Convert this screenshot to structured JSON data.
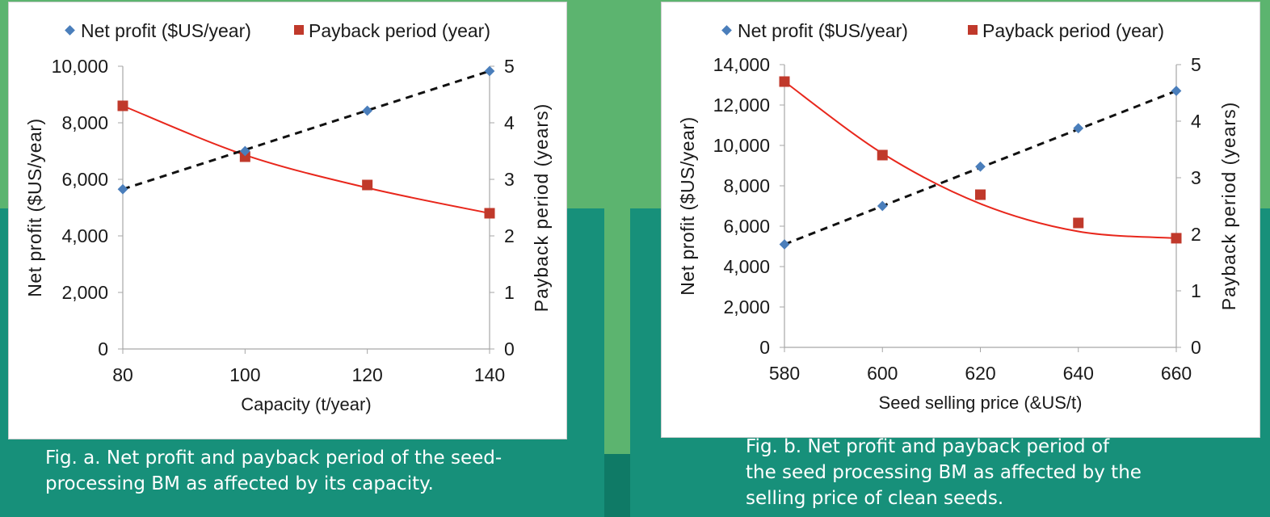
{
  "colors": {
    "net_profit_marker": "#4a7ebb",
    "payback_marker": "#c0392b",
    "payback_line": "#e8271c",
    "net_profit_line": "#111111",
    "bg_light": "#5cb46f",
    "bg_dark": "#17907a"
  },
  "captions": {
    "a": [
      "Fig. a. Net profit and payback period of the seed-",
      "processing BM as affected by its capacity."
    ],
    "b": [
      "Fig. b. Net profit and payback period of",
      "the seed processing BM as affected by the",
      "selling price of clean seeds."
    ]
  },
  "chart_data": [
    {
      "type": "line",
      "legend": [
        "Net profit ($US/year)",
        "Payback period (year)"
      ],
      "legend_position": "top",
      "xlabel": "Capacity (t/year)",
      "ylabel": "Net profit ($US/year)",
      "y2label": "Payback period (years)",
      "x": [
        80,
        100,
        120,
        140
      ],
      "x_ticks": [
        "80",
        "100",
        "120",
        "140"
      ],
      "xlim": [
        80,
        140
      ],
      "ylim": [
        0,
        10000
      ],
      "y_ticks": [
        "0",
        "2,000",
        "4,000",
        "6,000",
        "8,000",
        "10,000"
      ],
      "y2lim": [
        0,
        5
      ],
      "y2_ticks": [
        "0",
        "1",
        "2",
        "3",
        "4",
        "5"
      ],
      "series": [
        {
          "name": "Net profit ($US/year)",
          "axis": "left",
          "values": [
            5650,
            7000,
            8430,
            9830
          ],
          "trendline": "linear dashed"
        },
        {
          "name": "Payback period (year)",
          "axis": "right",
          "values": [
            4.3,
            3.4,
            2.9,
            2.4
          ],
          "fit": [
            4.3,
            3.43,
            2.85,
            2.4
          ],
          "trendline": "smooth solid"
        }
      ]
    },
    {
      "type": "line",
      "legend": [
        "Net profit ($US/year)",
        "Payback period (year)"
      ],
      "legend_position": "top",
      "xlabel": "Seed selling price (&US/t)",
      "ylabel": "Net profit ($US/year)",
      "y2label": "Payback period (years)",
      "x": [
        580,
        600,
        620,
        640,
        660
      ],
      "x_ticks": [
        "580",
        "600",
        "620",
        "640",
        "660"
      ],
      "xlim": [
        580,
        660
      ],
      "ylim": [
        0,
        14000
      ],
      "y_ticks": [
        "0",
        "2,000",
        "4,000",
        "6,000",
        "8,000",
        "10,000",
        "12,000",
        "14,000"
      ],
      "y2lim": [
        0,
        5
      ],
      "y2_ticks": [
        "0",
        "1",
        "2",
        "3",
        "4",
        "5"
      ],
      "series": [
        {
          "name": "Net profit ($US/year)",
          "axis": "left",
          "values": [
            5100,
            7000,
            8950,
            10850,
            12700
          ],
          "trendline": "linear dashed"
        },
        {
          "name": "Payback period (year)",
          "axis": "right",
          "values": [
            4.7,
            3.4,
            2.7,
            2.2,
            1.93
          ],
          "fit": [
            4.7,
            3.43,
            2.54,
            2.05,
            1.93
          ],
          "trendline": "smooth solid"
        }
      ]
    }
  ]
}
